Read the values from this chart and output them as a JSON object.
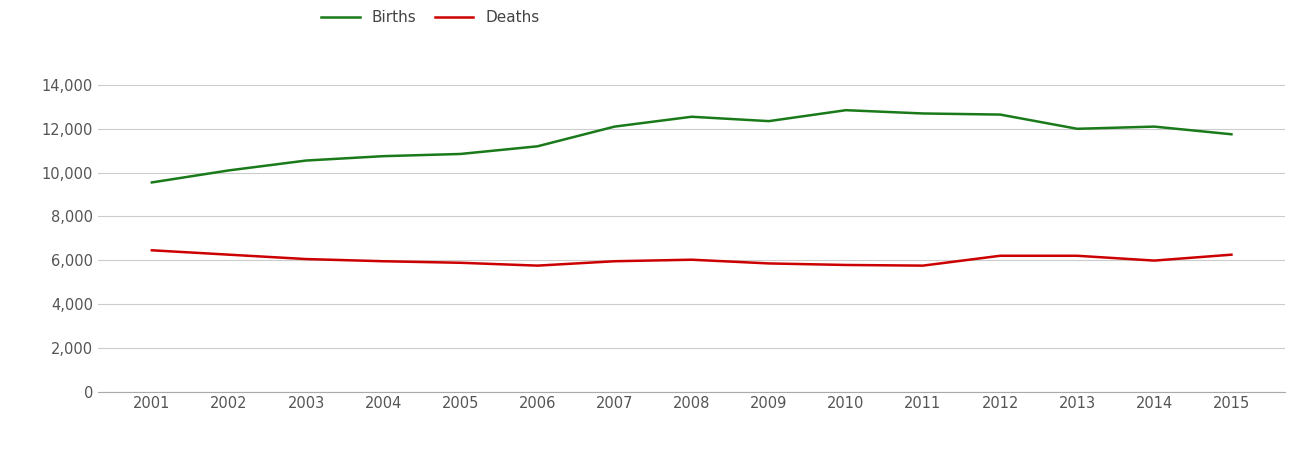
{
  "years": [
    2001,
    2002,
    2003,
    2004,
    2005,
    2006,
    2007,
    2008,
    2009,
    2010,
    2011,
    2012,
    2013,
    2014,
    2015
  ],
  "births": [
    9550,
    10100,
    10550,
    10750,
    10850,
    11200,
    12100,
    12550,
    12350,
    12850,
    12700,
    12650,
    12000,
    12100,
    11750
  ],
  "deaths": [
    6450,
    6250,
    6050,
    5950,
    5880,
    5750,
    5950,
    6020,
    5850,
    5780,
    5750,
    6200,
    6200,
    5980,
    6250
  ],
  "births_color": "#1a7a1a",
  "deaths_color": "#cc0000",
  "line_width": 1.8,
  "ylim": [
    0,
    14800
  ],
  "yticks": [
    0,
    2000,
    4000,
    6000,
    8000,
    10000,
    12000,
    14000
  ],
  "background_color": "#ffffff",
  "grid_color": "#cccccc",
  "legend_labels": [
    "Births",
    "Deaths"
  ],
  "legend_fontsize": 11,
  "tick_fontsize": 10.5
}
